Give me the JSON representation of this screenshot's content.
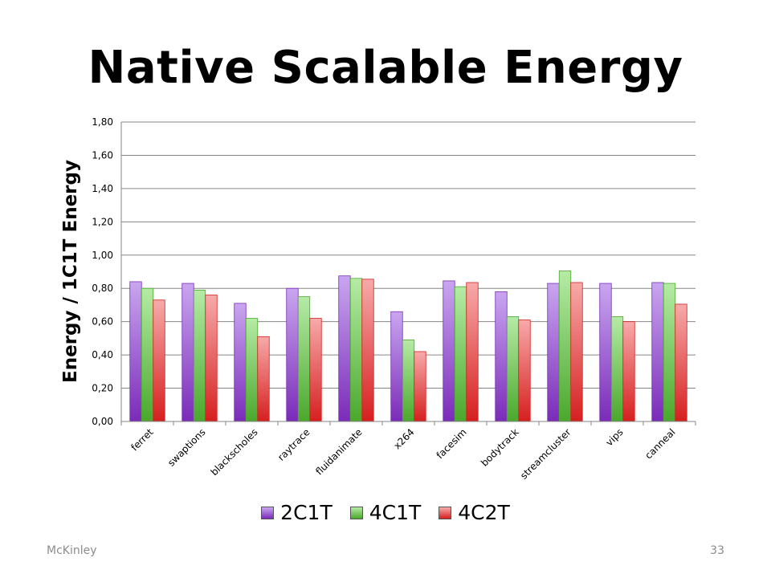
{
  "slide": {
    "title": "Native Scalable Energy",
    "footer_left": "McKinley",
    "page_number": "33"
  },
  "colors": {
    "2C1T_top": "#c9a6f0",
    "2C1T_bottom": "#7a2bb8",
    "4C1T_top": "#b6eba6",
    "4C1T_bottom": "#4aa82c",
    "4C2T_top": "#f7aaaa",
    "4C2T_bottom": "#d61f1f",
    "grid": "#868686",
    "axis": "#868686"
  },
  "chart_data": {
    "type": "bar",
    "ylabel": "Energy / 1C1T Energy",
    "ylim": [
      0,
      1.8
    ],
    "yticks": [
      "0,00",
      "0,20",
      "0,40",
      "0,60",
      "0,80",
      "1,00",
      "1,20",
      "1,40",
      "1,60",
      "1,80"
    ],
    "grid": true,
    "legend_position": "bottom",
    "categories": [
      "ferret",
      "swaptions",
      "blackscholes",
      "raytrace",
      "fluidanimate",
      "x264",
      "facesim",
      "bodytrack",
      "streamcluster",
      "vips",
      "canneal"
    ],
    "series": [
      {
        "name": "2C1T",
        "values": [
          0.84,
          0.83,
          0.71,
          0.8,
          0.875,
          0.66,
          0.845,
          0.78,
          0.83,
          0.83,
          0.835
        ]
      },
      {
        "name": "4C1T",
        "values": [
          0.8,
          0.79,
          0.62,
          0.75,
          0.86,
          0.49,
          0.81,
          0.63,
          0.905,
          0.63,
          0.83
        ]
      },
      {
        "name": "4C2T",
        "values": [
          0.73,
          0.76,
          0.51,
          0.62,
          0.855,
          0.42,
          0.835,
          0.61,
          0.835,
          0.6,
          0.705
        ]
      }
    ]
  }
}
